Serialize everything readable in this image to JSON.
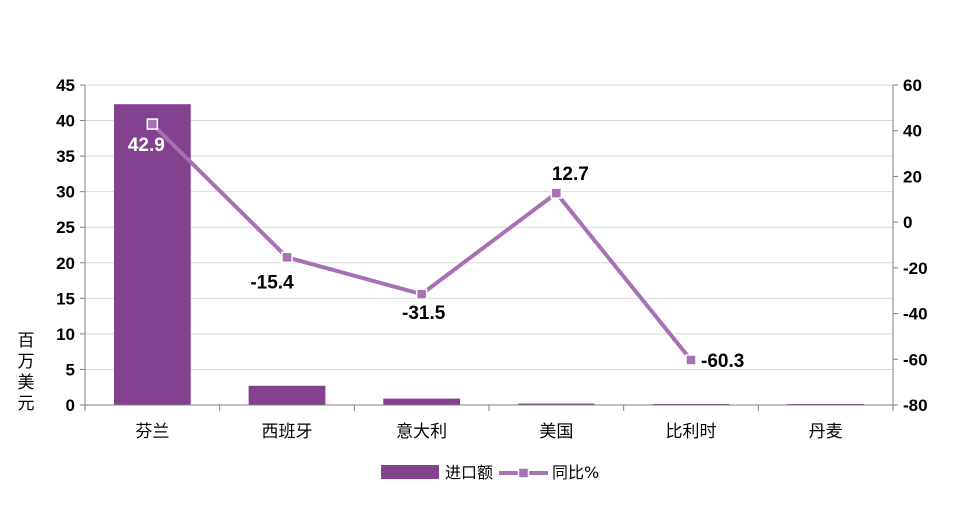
{
  "chart_data": {
    "type": "bar+line",
    "categories": [
      "芬兰",
      "西班牙",
      "意大利",
      "美国",
      "比利时",
      "丹麦"
    ],
    "series": [
      {
        "name": "进口额",
        "type": "bar",
        "axis": "left",
        "values": [
          42.3,
          2.7,
          0.9,
          0.2,
          0.1,
          0.05
        ]
      },
      {
        "name": "同比%",
        "type": "line",
        "axis": "right",
        "values": [
          42.9,
          -15.4,
          -31.5,
          12.7,
          -60.3,
          null
        ]
      }
    ],
    "data_labels": [
      "42.9",
      "-15.4",
      "-31.5",
      "12.7",
      "-60.3"
    ],
    "ylabel": "百万美元",
    "ylim_left": [
      0,
      45
    ],
    "yticks_left": [
      0,
      5,
      10,
      15,
      20,
      25,
      30,
      35,
      40,
      45
    ],
    "ylim_right": [
      -80,
      60
    ],
    "yticks_right": [
      -80,
      -60,
      -40,
      -20,
      0,
      20,
      40,
      60
    ],
    "grid": true,
    "legend_position": "bottom",
    "colors": {
      "bar": "#83418f",
      "line": "#a971b5",
      "grid": "#d9d9d9",
      "axis": "#808080"
    }
  }
}
